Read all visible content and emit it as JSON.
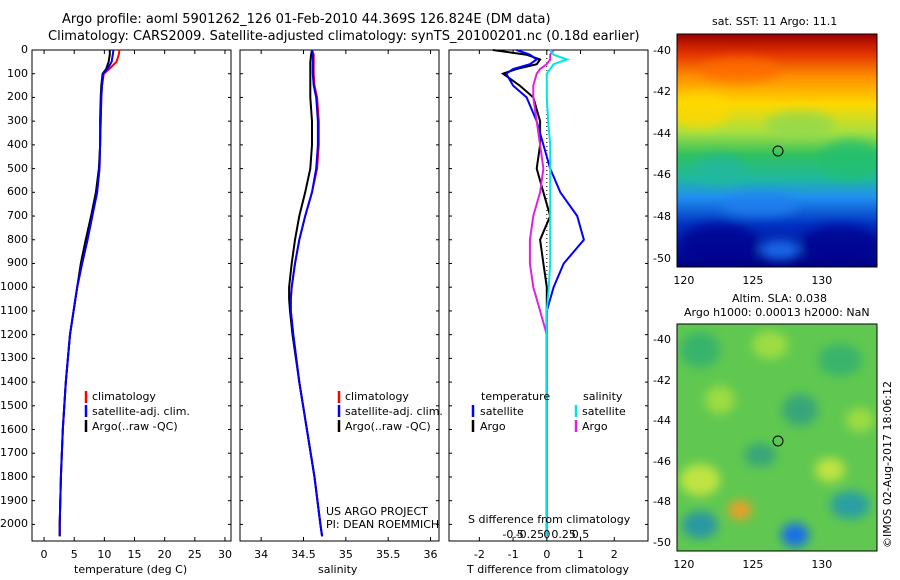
{
  "title_line1": "Argo profile: aoml 5901262_126 01-Feb-2010 44.369S 126.824E (DM data)",
  "title_line2": "Climatology: CARS2009. Satellite-adjusted climatology: synTS_20100201.nc (0.18d earlier)",
  "credit": "©IMOS 02-Aug-2017 18:06:12",
  "colors": {
    "climatology": "#ff0000",
    "satellite": "#0000ff",
    "argo": "#000000",
    "sal_satellite": "#00e5e5",
    "sal_argo": "#e020e0"
  },
  "chart_data": [
    {
      "type": "line",
      "name": "temperature",
      "xlabel": "temperature (deg C)",
      "ylabel": "",
      "xlim": [
        -2,
        31
      ],
      "ylim": [
        2070,
        0
      ],
      "xticks": [
        "0",
        "5",
        "10",
        "15",
        "20",
        "25",
        "30"
      ],
      "yticks": [
        "0",
        "100",
        "200",
        "300",
        "400",
        "500",
        "600",
        "700",
        "800",
        "900",
        "1000",
        "1100",
        "1200",
        "1300",
        "1400",
        "1500",
        "1600",
        "1700",
        "1800",
        "1900",
        "2000"
      ],
      "depth": [
        0,
        20,
        50,
        80,
        100,
        150,
        200,
        300,
        400,
        500,
        600,
        700,
        800,
        900,
        1000,
        1100,
        1200,
        1400,
        1600,
        1800,
        2000,
        2050
      ],
      "series": [
        {
          "name": "climatology",
          "values": [
            12.5,
            12.4,
            12.0,
            10.8,
            9.9,
            9.6,
            9.5,
            9.4,
            9.3,
            9.2,
            8.8,
            8.0,
            7.2,
            6.3,
            5.5,
            4.9,
            4.3,
            3.6,
            3.1,
            2.8,
            2.6,
            2.6
          ]
        },
        {
          "name": "satellite-adj. clim.",
          "values": [
            11.5,
            11.4,
            11.2,
            10.5,
            9.8,
            9.6,
            9.5,
            9.4,
            9.3,
            9.2,
            8.8,
            8.0,
            7.2,
            6.3,
            5.5,
            4.9,
            4.3,
            3.6,
            3.1,
            2.8,
            2.6,
            2.6
          ]
        },
        {
          "name": "Argo(..raw -QC)",
          "values": [
            10.9,
            10.9,
            10.7,
            10.3,
            9.7,
            9.5,
            9.4,
            9.3,
            9.3,
            9.1,
            8.6,
            7.8,
            6.9,
            6.1,
            5.5,
            4.9,
            4.3,
            3.6,
            3.1,
            2.8,
            2.6,
            2.6
          ]
        }
      ],
      "legend": [
        "climatology",
        "satellite-adj. clim.",
        "Argo(..raw -QC)"
      ]
    },
    {
      "type": "line",
      "name": "salinity",
      "xlabel": "salinity",
      "xlim": [
        33.75,
        36.1
      ],
      "ylim": [
        2070,
        0
      ],
      "xticks": [
        "34",
        "34.5",
        "35",
        "35.5",
        "36"
      ],
      "depth": [
        0,
        20,
        50,
        80,
        100,
        150,
        200,
        300,
        400,
        500,
        600,
        700,
        800,
        900,
        1000,
        1050,
        1100,
        1200,
        1400,
        1600,
        1800,
        2000,
        2050
      ],
      "series": [
        {
          "name": "climatology",
          "values": [
            34.6,
            34.62,
            34.62,
            34.62,
            34.62,
            34.63,
            34.66,
            34.68,
            34.68,
            34.66,
            34.6,
            34.52,
            34.45,
            34.4,
            34.36,
            34.35,
            34.35,
            34.38,
            34.45,
            34.54,
            34.63,
            34.7,
            34.72
          ]
        },
        {
          "name": "satellite-adj. clim.",
          "values": [
            34.6,
            34.61,
            34.61,
            34.61,
            34.61,
            34.62,
            34.65,
            34.67,
            34.67,
            34.65,
            34.6,
            34.52,
            34.45,
            34.4,
            34.36,
            34.35,
            34.35,
            34.38,
            34.45,
            34.54,
            34.63,
            34.7,
            34.72
          ]
        },
        {
          "name": "Argo(..raw -QC)",
          "values": [
            34.6,
            34.59,
            34.58,
            34.58,
            34.58,
            34.58,
            34.58,
            34.6,
            34.6,
            34.58,
            34.52,
            34.45,
            34.4,
            34.36,
            34.33,
            34.33,
            34.34,
            34.37,
            34.45,
            34.54,
            34.63,
            34.7,
            34.72
          ]
        }
      ],
      "legend": [
        "climatology",
        "satellite-adj. clim.",
        "Argo(..raw -QC)"
      ],
      "annotation_line1": "US ARGO PROJECT",
      "annotation_line2": "PI: DEAN ROEMMICH"
    },
    {
      "type": "line",
      "name": "differences",
      "xlabel": "T difference from climatology",
      "xlabel_top": "S difference from climatology",
      "xlim": [
        -2.9,
        3.0
      ],
      "ylim": [
        2070,
        0
      ],
      "xticks": [
        "-2",
        "-1",
        "0",
        "1",
        "2"
      ],
      "s_ticks": [
        "-0.5",
        "-0.25",
        "0",
        "0.25",
        "0.5"
      ],
      "depth": [
        0,
        20,
        40,
        60,
        80,
        100,
        150,
        200,
        300,
        400,
        500,
        600,
        700,
        800,
        900,
        1000,
        1100,
        1200,
        1400,
        1600,
        1800,
        2000,
        2050
      ],
      "series": [
        {
          "name": "temperature satellite",
          "values": [
            -0.9,
            -0.5,
            -0.3,
            -0.5,
            -1.0,
            -1.2,
            -1.0,
            -0.6,
            -0.3,
            -0.1,
            0.1,
            0.4,
            0.9,
            1.1,
            0.5,
            0.2,
            0.0,
            0.0,
            0.0,
            0.0,
            0.0,
            0.0,
            0.0
          ]
        },
        {
          "name": "temperature Argo",
          "values": [
            -1.6,
            -0.6,
            -0.2,
            -0.3,
            -0.9,
            -1.3,
            -0.8,
            -0.4,
            -0.2,
            -0.2,
            -0.3,
            -0.1,
            0.1,
            -0.2,
            -0.1,
            0.0,
            0.0,
            0.0,
            0.0,
            0.0,
            0.0,
            0.0,
            0.0
          ]
        },
        {
          "name": "salinity satellite",
          "values": [
            0.05,
            0.1,
            0.3,
            0.1,
            0.05,
            0.0,
            0.0,
            0.0,
            0.02,
            0.05,
            0.05,
            0.05,
            0.05,
            0.05,
            0.05,
            0.03,
            0.0,
            0.0,
            0.0,
            0.0,
            0.0,
            0.0,
            0.0
          ]
        },
        {
          "name": "salinity Argo",
          "values": [
            0.1,
            0.05,
            0.05,
            0.0,
            -0.1,
            -0.15,
            -0.2,
            -0.2,
            -0.15,
            -0.1,
            -0.05,
            -0.1,
            -0.2,
            -0.25,
            -0.25,
            -0.2,
            -0.1,
            0.0,
            0.0,
            0.0,
            0.0,
            0.0,
            0.0
          ]
        }
      ],
      "legend_header_t": "temperature",
      "legend_header_s": "salinity",
      "legend": [
        "satellite",
        "Argo",
        "satellite",
        "Argo"
      ]
    },
    {
      "type": "heatmap",
      "name": "sst-map",
      "title": "sat. SST: 11 Argo: 11.1",
      "xticks": [
        "120",
        "125",
        "130"
      ],
      "yticks": [
        "-40",
        "-42",
        "-44",
        "-46",
        "-48",
        "-50"
      ],
      "xlim": [
        119.5,
        134
      ],
      "ylim": [
        -50.4,
        -39.2
      ],
      "marker": {
        "lon": 126.824,
        "lat": -44.369
      }
    },
    {
      "type": "heatmap",
      "name": "sla-map",
      "title_line1": "Altim. SLA: 0.038",
      "title_line2": "Argo h1000: 0.00013 h2000: NaN",
      "xticks": [
        "120",
        "125",
        "130"
      ],
      "yticks": [
        "-40",
        "-42",
        "-44",
        "-46",
        "-48",
        "-50"
      ],
      "xlim": [
        119.5,
        134
      ],
      "ylim": [
        -50.4,
        -39.2
      ],
      "marker": {
        "lon": 126.824,
        "lat": -44.369
      }
    }
  ]
}
